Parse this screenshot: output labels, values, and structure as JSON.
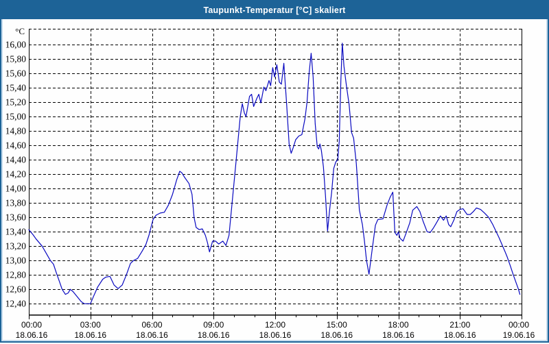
{
  "window": {
    "title": "Taupunkt-Temperatur [°C] skaliert"
  },
  "colors": {
    "titlebar": "#1d6397",
    "frame_light": "#c6dcee",
    "grid": "#000000",
    "axis": "#000000",
    "series_line": "#0808c0",
    "plot_background": "#ffffff"
  },
  "chart_data": {
    "type": "line",
    "title": "Taupunkt-Temperatur [°C] skaliert",
    "ylabel": "°C",
    "xlabel": "",
    "grid": "dashed",
    "legend": "none",
    "ylim": [
      12.25,
      16.22
    ],
    "xlim_hours": [
      0,
      24
    ],
    "x_minor_tick_interval_hours": 1,
    "y_ticks": [
      {
        "value": 16.0,
        "label": "16,00"
      },
      {
        "value": 15.8,
        "label": "15,80"
      },
      {
        "value": 15.6,
        "label": "15,60"
      },
      {
        "value": 15.4,
        "label": "15,40"
      },
      {
        "value": 15.2,
        "label": "15,20"
      },
      {
        "value": 15.0,
        "label": "15,00"
      },
      {
        "value": 14.8,
        "label": "14,80"
      },
      {
        "value": 14.6,
        "label": "14,60"
      },
      {
        "value": 14.4,
        "label": "14,40"
      },
      {
        "value": 14.2,
        "label": "14,20"
      },
      {
        "value": 14.0,
        "label": "14,00"
      },
      {
        "value": 13.8,
        "label": "13,80"
      },
      {
        "value": 13.6,
        "label": "13,60"
      },
      {
        "value": 13.4,
        "label": "13,40"
      },
      {
        "value": 13.2,
        "label": "13,20"
      },
      {
        "value": 13.0,
        "label": "13,00"
      },
      {
        "value": 12.8,
        "label": "12,80"
      },
      {
        "value": 12.6,
        "label": "12,60"
      },
      {
        "value": 12.4,
        "label": "12,40"
      }
    ],
    "x_ticks": [
      {
        "hour": 0,
        "time": "00:00",
        "date": "18.06.16"
      },
      {
        "hour": 3,
        "time": "03:00",
        "date": "18.06.16"
      },
      {
        "hour": 6,
        "time": "06:00",
        "date": "18.06.16"
      },
      {
        "hour": 9,
        "time": "09:00",
        "date": "18.06.16"
      },
      {
        "hour": 12,
        "time": "12:00",
        "date": "18.06.16"
      },
      {
        "hour": 15,
        "time": "15:00",
        "date": "18.06.16"
      },
      {
        "hour": 18,
        "time": "18:00",
        "date": "18.06.16"
      },
      {
        "hour": 21,
        "time": "21:00",
        "date": "18.06.16"
      },
      {
        "hour": 24,
        "time": "00:00",
        "date": "19.06.16"
      }
    ],
    "series": [
      {
        "name": "Taupunkt-Temperatur [°C]",
        "color": "#0808c0",
        "points": [
          [
            0.0,
            13.43
          ],
          [
            0.2,
            13.36
          ],
          [
            0.35,
            13.3
          ],
          [
            0.65,
            13.2
          ],
          [
            0.85,
            13.1
          ],
          [
            1.05,
            13.0
          ],
          [
            1.2,
            12.95
          ],
          [
            1.35,
            12.82
          ],
          [
            1.5,
            12.7
          ],
          [
            1.62,
            12.6
          ],
          [
            1.78,
            12.53
          ],
          [
            1.92,
            12.55
          ],
          [
            2.02,
            12.6
          ],
          [
            2.15,
            12.57
          ],
          [
            2.35,
            12.5
          ],
          [
            2.55,
            12.43
          ],
          [
            2.7,
            12.4
          ],
          [
            3.0,
            12.4
          ],
          [
            3.15,
            12.5
          ],
          [
            3.35,
            12.63
          ],
          [
            3.6,
            12.74
          ],
          [
            3.75,
            12.77
          ],
          [
            3.95,
            12.78
          ],
          [
            4.15,
            12.66
          ],
          [
            4.35,
            12.61
          ],
          [
            4.55,
            12.66
          ],
          [
            4.75,
            12.8
          ],
          [
            4.95,
            12.96
          ],
          [
            5.1,
            13.0
          ],
          [
            5.3,
            13.03
          ],
          [
            5.5,
            13.12
          ],
          [
            5.7,
            13.22
          ],
          [
            5.85,
            13.35
          ],
          [
            6.05,
            13.57
          ],
          [
            6.2,
            13.63
          ],
          [
            6.4,
            13.66
          ],
          [
            6.6,
            13.67
          ],
          [
            6.8,
            13.77
          ],
          [
            7.0,
            13.92
          ],
          [
            7.2,
            14.12
          ],
          [
            7.35,
            14.24
          ],
          [
            7.45,
            14.22
          ],
          [
            7.6,
            14.15
          ],
          [
            7.8,
            14.07
          ],
          [
            7.95,
            13.92
          ],
          [
            8.05,
            13.6
          ],
          [
            8.15,
            13.46
          ],
          [
            8.3,
            13.43
          ],
          [
            8.45,
            13.44
          ],
          [
            8.6,
            13.35
          ],
          [
            8.7,
            13.25
          ],
          [
            8.8,
            13.12
          ],
          [
            8.95,
            13.27
          ],
          [
            9.1,
            13.27
          ],
          [
            9.25,
            13.23
          ],
          [
            9.45,
            13.27
          ],
          [
            9.6,
            13.21
          ],
          [
            9.75,
            13.35
          ],
          [
            9.9,
            13.8
          ],
          [
            10.1,
            14.4
          ],
          [
            10.3,
            15.0
          ],
          [
            10.4,
            15.18
          ],
          [
            10.5,
            15.05
          ],
          [
            10.58,
            15.0
          ],
          [
            10.75,
            15.28
          ],
          [
            10.85,
            15.31
          ],
          [
            10.95,
            15.14
          ],
          [
            11.1,
            15.25
          ],
          [
            11.2,
            15.31
          ],
          [
            11.3,
            15.19
          ],
          [
            11.45,
            15.41
          ],
          [
            11.55,
            15.36
          ],
          [
            11.7,
            15.5
          ],
          [
            11.78,
            15.43
          ],
          [
            11.88,
            15.68
          ],
          [
            11.97,
            15.55
          ],
          [
            12.08,
            15.72
          ],
          [
            12.2,
            15.48
          ],
          [
            12.3,
            15.45
          ],
          [
            12.42,
            15.74
          ],
          [
            12.55,
            15.2
          ],
          [
            12.68,
            14.62
          ],
          [
            12.78,
            14.49
          ],
          [
            12.88,
            14.57
          ],
          [
            13.0,
            14.68
          ],
          [
            13.15,
            14.73
          ],
          [
            13.3,
            14.75
          ],
          [
            13.45,
            14.97
          ],
          [
            13.55,
            15.2
          ],
          [
            13.65,
            15.6
          ],
          [
            13.75,
            15.88
          ],
          [
            13.85,
            15.55
          ],
          [
            13.95,
            14.9
          ],
          [
            14.05,
            14.58
          ],
          [
            14.12,
            14.55
          ],
          [
            14.18,
            14.62
          ],
          [
            14.25,
            14.53
          ],
          [
            14.35,
            14.3
          ],
          [
            14.45,
            13.9
          ],
          [
            14.55,
            13.41
          ],
          [
            14.65,
            13.7
          ],
          [
            14.75,
            13.95
          ],
          [
            14.85,
            14.28
          ],
          [
            14.95,
            14.37
          ],
          [
            15.05,
            14.4
          ],
          [
            15.12,
            14.65
          ],
          [
            15.2,
            15.5
          ],
          [
            15.27,
            16.02
          ],
          [
            15.35,
            15.7
          ],
          [
            15.47,
            15.43
          ],
          [
            15.6,
            15.17
          ],
          [
            15.72,
            14.78
          ],
          [
            15.82,
            14.7
          ],
          [
            15.95,
            14.35
          ],
          [
            16.1,
            13.7
          ],
          [
            16.25,
            13.5
          ],
          [
            16.35,
            13.27
          ],
          [
            16.45,
            13.0
          ],
          [
            16.57,
            12.81
          ],
          [
            16.7,
            13.1
          ],
          [
            16.88,
            13.49
          ],
          [
            17.0,
            13.57
          ],
          [
            17.25,
            13.58
          ],
          [
            17.45,
            13.77
          ],
          [
            17.6,
            13.88
          ],
          [
            17.73,
            13.95
          ],
          [
            17.83,
            13.39
          ],
          [
            17.93,
            13.35
          ],
          [
            18.0,
            13.4
          ],
          [
            18.08,
            13.31
          ],
          [
            18.23,
            13.27
          ],
          [
            18.4,
            13.4
          ],
          [
            18.55,
            13.52
          ],
          [
            18.7,
            13.7
          ],
          [
            18.9,
            13.75
          ],
          [
            19.05,
            13.68
          ],
          [
            19.2,
            13.55
          ],
          [
            19.4,
            13.4
          ],
          [
            19.55,
            13.39
          ],
          [
            19.7,
            13.45
          ],
          [
            19.85,
            13.52
          ],
          [
            20.05,
            13.62
          ],
          [
            20.2,
            13.56
          ],
          [
            20.33,
            13.62
          ],
          [
            20.45,
            13.5
          ],
          [
            20.55,
            13.47
          ],
          [
            20.7,
            13.56
          ],
          [
            20.85,
            13.68
          ],
          [
            21.0,
            13.71
          ],
          [
            21.15,
            13.72
          ],
          [
            21.35,
            13.64
          ],
          [
            21.5,
            13.64
          ],
          [
            21.65,
            13.68
          ],
          [
            21.8,
            13.73
          ],
          [
            22.0,
            13.71
          ],
          [
            22.2,
            13.66
          ],
          [
            22.4,
            13.6
          ],
          [
            22.6,
            13.5
          ],
          [
            22.75,
            13.41
          ],
          [
            22.9,
            13.32
          ],
          [
            23.05,
            13.22
          ],
          [
            23.2,
            13.12
          ],
          [
            23.3,
            13.05
          ],
          [
            23.45,
            12.93
          ],
          [
            23.6,
            12.8
          ],
          [
            23.75,
            12.68
          ],
          [
            23.85,
            12.6
          ],
          [
            23.92,
            12.53
          ]
        ]
      }
    ]
  }
}
